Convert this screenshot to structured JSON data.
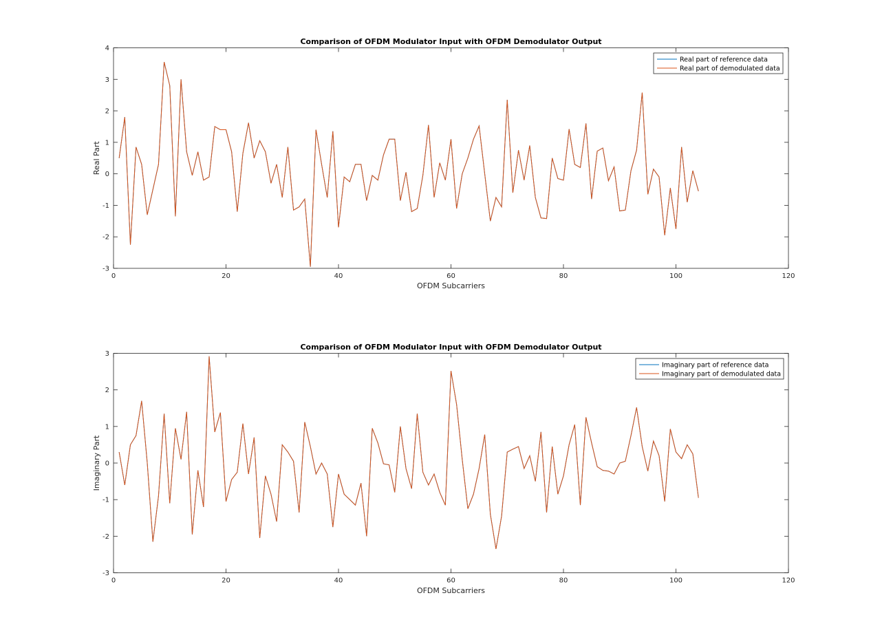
{
  "chart_data": [
    {
      "type": "line",
      "title": "Comparison of OFDM Modulator Input with OFDM Demodulator Output",
      "xlabel": "OFDM Subcarriers",
      "ylabel": "Real Part",
      "xlim": [
        0,
        120
      ],
      "ylim": [
        -3,
        4
      ],
      "xticks": [
        0,
        20,
        40,
        60,
        80,
        100,
        120
      ],
      "yticks": [
        -3,
        -2,
        -1,
        0,
        1,
        2,
        3,
        4
      ],
      "grid": false,
      "legend_position": "top-right",
      "x": [
        1,
        2,
        3,
        4,
        5,
        6,
        7,
        8,
        9,
        10,
        11,
        12,
        13,
        14,
        15,
        16,
        17,
        18,
        19,
        20,
        21,
        22,
        23,
        24,
        25,
        26,
        27,
        28,
        29,
        30,
        31,
        32,
        33,
        34,
        35,
        36,
        37,
        38,
        39,
        40,
        41,
        42,
        43,
        44,
        45,
        46,
        47,
        48,
        49,
        50,
        51,
        52,
        53,
        54,
        55,
        56,
        57,
        58,
        59,
        60,
        61,
        62,
        63,
        64,
        65,
        66,
        67,
        68,
        69,
        70,
        71,
        72,
        73,
        74,
        75,
        76,
        77,
        78,
        79,
        80,
        81,
        82,
        83,
        84,
        85,
        86,
        87,
        88,
        89,
        90,
        91,
        92,
        93,
        94,
        95,
        96,
        97,
        98,
        99,
        100,
        101,
        102,
        103,
        104
      ],
      "series": [
        {
          "name": "Real part of reference data",
          "color": "#0072bd",
          "values": [
            0.5,
            1.8,
            -2.25,
            0.85,
            0.3,
            -1.3,
            -0.5,
            0.3,
            3.55,
            2.8,
            -1.35,
            3.0,
            0.7,
            -0.05,
            0.7,
            -0.2,
            -0.1,
            1.5,
            1.4,
            1.4,
            0.7,
            -1.2,
            0.65,
            1.62,
            0.5,
            1.05,
            0.7,
            -0.3,
            0.3,
            -0.75,
            0.85,
            -1.15,
            -1.05,
            -0.8,
            -2.95,
            1.4,
            0.3,
            -0.75,
            1.35,
            -1.7,
            -0.1,
            -0.25,
            0.3,
            0.3,
            -0.85,
            -0.05,
            -0.2,
            0.6,
            1.1,
            1.1,
            -0.85,
            0.05,
            -1.2,
            -1.1,
            -0.05,
            1.55,
            -0.75,
            0.35,
            -0.2,
            1.1,
            -1.1,
            0.0,
            0.5,
            1.1,
            1.52,
            0.0,
            -1.5,
            -0.75,
            -1.05,
            2.35,
            -0.6,
            0.75,
            -0.2,
            0.9,
            -0.75,
            -1.4,
            -1.42,
            0.5,
            -0.15,
            -0.2,
            1.42,
            0.3,
            0.2,
            1.6,
            -0.8,
            0.72,
            0.82,
            -0.22,
            0.22,
            -1.18,
            -1.15,
            0.1,
            0.75,
            2.58,
            -0.65,
            0.15,
            -0.1,
            -1.95,
            -0.45,
            -1.75,
            0.85,
            -0.9,
            0.1,
            -0.55
          ]
        },
        {
          "name": "Real part of demodulated data",
          "color": "#d95319",
          "values": [
            0.5,
            1.8,
            -2.25,
            0.85,
            0.3,
            -1.3,
            -0.5,
            0.3,
            3.55,
            2.8,
            -1.35,
            3.0,
            0.7,
            -0.05,
            0.7,
            -0.2,
            -0.1,
            1.5,
            1.4,
            1.4,
            0.7,
            -1.2,
            0.65,
            1.62,
            0.5,
            1.05,
            0.7,
            -0.3,
            0.3,
            -0.75,
            0.85,
            -1.15,
            -1.05,
            -0.8,
            -2.95,
            1.4,
            0.3,
            -0.75,
            1.35,
            -1.7,
            -0.1,
            -0.25,
            0.3,
            0.3,
            -0.85,
            -0.05,
            -0.2,
            0.6,
            1.1,
            1.1,
            -0.85,
            0.05,
            -1.2,
            -1.1,
            -0.05,
            1.55,
            -0.75,
            0.35,
            -0.2,
            1.1,
            -1.1,
            0.0,
            0.5,
            1.1,
            1.52,
            0.0,
            -1.5,
            -0.75,
            -1.05,
            2.35,
            -0.6,
            0.75,
            -0.2,
            0.9,
            -0.75,
            -1.4,
            -1.42,
            0.5,
            -0.15,
            -0.2,
            1.42,
            0.3,
            0.2,
            1.6,
            -0.8,
            0.72,
            0.82,
            -0.22,
            0.22,
            -1.18,
            -1.15,
            0.1,
            0.75,
            2.58,
            -0.65,
            0.15,
            -0.1,
            -1.95,
            -0.45,
            -1.75,
            0.85,
            -0.9,
            0.1,
            -0.55
          ]
        }
      ]
    },
    {
      "type": "line",
      "title": "Comparison of OFDM Modulator Input with OFDM Demodulator Output",
      "xlabel": "OFDM Subcarriers",
      "ylabel": "Imaginary Part",
      "xlim": [
        0,
        120
      ],
      "ylim": [
        -3,
        3
      ],
      "xticks": [
        0,
        20,
        40,
        60,
        80,
        100,
        120
      ],
      "yticks": [
        -3,
        -2,
        -1,
        0,
        1,
        2,
        3
      ],
      "grid": false,
      "legend_position": "top-right",
      "x": [
        1,
        2,
        3,
        4,
        5,
        6,
        7,
        8,
        9,
        10,
        11,
        12,
        13,
        14,
        15,
        16,
        17,
        18,
        19,
        20,
        21,
        22,
        23,
        24,
        25,
        26,
        27,
        28,
        29,
        30,
        31,
        32,
        33,
        34,
        35,
        36,
        37,
        38,
        39,
        40,
        41,
        42,
        43,
        44,
        45,
        46,
        47,
        48,
        49,
        50,
        51,
        52,
        53,
        54,
        55,
        56,
        57,
        58,
        59,
        60,
        61,
        62,
        63,
        64,
        65,
        66,
        67,
        68,
        69,
        70,
        71,
        72,
        73,
        74,
        75,
        76,
        77,
        78,
        79,
        80,
        81,
        82,
        83,
        84,
        85,
        86,
        87,
        88,
        89,
        90,
        91,
        92,
        93,
        94,
        95,
        96,
        97,
        98,
        99,
        100,
        101,
        102,
        103,
        104
      ],
      "series": [
        {
          "name": "Imaginary part of reference data",
          "color": "#0072bd",
          "values": [
            0.3,
            -0.6,
            0.5,
            0.75,
            1.7,
            0.0,
            -2.15,
            -0.9,
            1.35,
            -1.1,
            0.95,
            0.1,
            1.4,
            -1.95,
            -0.2,
            -1.2,
            2.92,
            0.85,
            1.38,
            -1.05,
            -0.45,
            -0.25,
            1.08,
            -0.3,
            0.7,
            -2.05,
            -0.35,
            -0.85,
            -1.6,
            0.5,
            0.3,
            0.05,
            -1.35,
            1.12,
            0.45,
            -0.3,
            0.0,
            -0.3,
            -1.75,
            -0.3,
            -0.85,
            -1.0,
            -1.15,
            -0.55,
            -2.0,
            0.95,
            0.55,
            -0.02,
            -0.05,
            -0.8,
            1.0,
            -0.15,
            -0.7,
            1.35,
            -0.25,
            -0.6,
            -0.3,
            -0.8,
            -1.15,
            2.52,
            1.6,
            0.1,
            -1.25,
            -0.85,
            -0.15,
            0.78,
            -1.4,
            -2.35,
            -1.45,
            0.3,
            0.38,
            0.45,
            -0.15,
            0.2,
            -0.5,
            0.85,
            -1.35,
            0.45,
            -0.85,
            -0.35,
            0.5,
            1.05,
            -1.15,
            1.25,
            0.55,
            -0.1,
            -0.2,
            -0.22,
            -0.3,
            0.0,
            0.05,
            0.75,
            1.52,
            0.45,
            -0.22,
            0.6,
            0.2,
            -1.05,
            0.93,
            0.3,
            0.12,
            0.5,
            0.25,
            -0.95
          ]
        },
        {
          "name": "Imaginary part of demodulated data",
          "color": "#d95319",
          "values": [
            0.3,
            -0.6,
            0.5,
            0.75,
            1.7,
            0.0,
            -2.15,
            -0.9,
            1.35,
            -1.1,
            0.95,
            0.1,
            1.4,
            -1.95,
            -0.2,
            -1.2,
            2.92,
            0.85,
            1.38,
            -1.05,
            -0.45,
            -0.25,
            1.08,
            -0.3,
            0.7,
            -2.05,
            -0.35,
            -0.85,
            -1.6,
            0.5,
            0.3,
            0.05,
            -1.35,
            1.12,
            0.45,
            -0.3,
            0.0,
            -0.3,
            -1.75,
            -0.3,
            -0.85,
            -1.0,
            -1.15,
            -0.55,
            -2.0,
            0.95,
            0.55,
            -0.02,
            -0.05,
            -0.8,
            1.0,
            -0.15,
            -0.7,
            1.35,
            -0.25,
            -0.6,
            -0.3,
            -0.8,
            -1.15,
            2.52,
            1.6,
            0.1,
            -1.25,
            -0.85,
            -0.15,
            0.78,
            -1.4,
            -2.35,
            -1.45,
            0.3,
            0.38,
            0.45,
            -0.15,
            0.2,
            -0.5,
            0.85,
            -1.35,
            0.45,
            -0.85,
            -0.35,
            0.5,
            1.05,
            -1.15,
            1.25,
            0.55,
            -0.1,
            -0.2,
            -0.22,
            -0.3,
            0.0,
            0.05,
            0.75,
            1.52,
            0.45,
            -0.22,
            0.6,
            0.2,
            -1.05,
            0.93,
            0.3,
            0.12,
            0.5,
            0.25,
            -0.95
          ]
        }
      ]
    }
  ]
}
